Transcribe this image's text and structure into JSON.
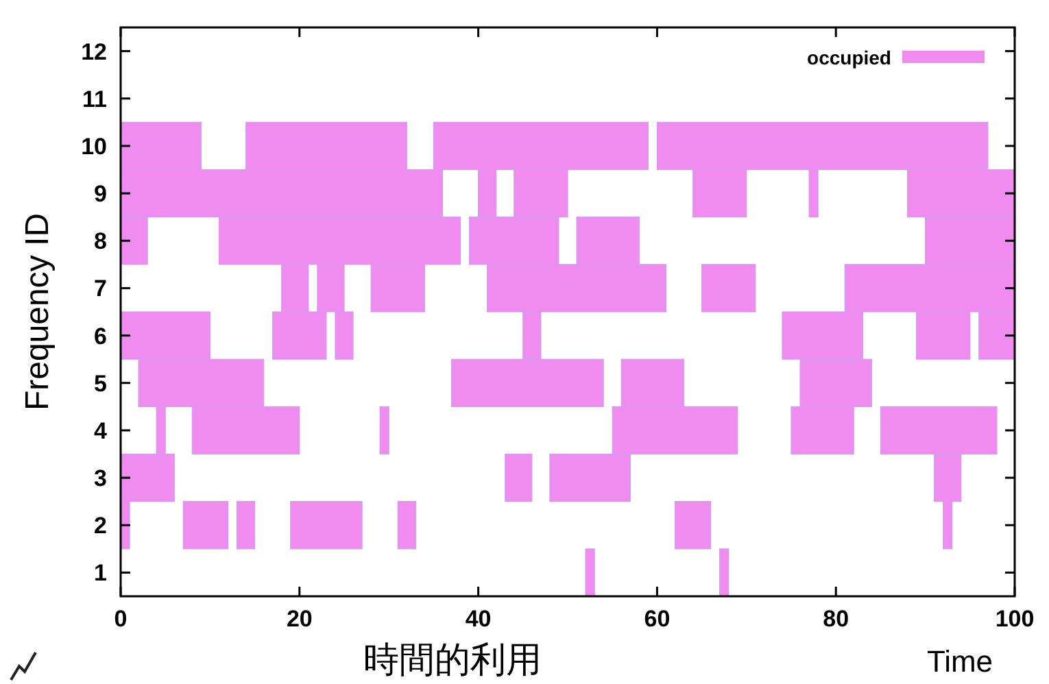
{
  "chart_data": {
    "type": "bar",
    "orientation": "horizontal",
    "xlabel": "Time",
    "ylabel": "Frequency ID",
    "annotations": [
      "時間的利用"
    ],
    "categories": [
      "12",
      "11",
      "10",
      "9",
      "8",
      "7",
      "6",
      "5",
      "4",
      "3",
      "2",
      "1"
    ],
    "xlim": [
      0,
      100
    ],
    "xticks": [
      0,
      20,
      40,
      60,
      80,
      100
    ],
    "legend": "top right",
    "series": [
      {
        "name": "occupied",
        "color": "#f08cf0",
        "base": [
          null,
          null,
          0,
          0,
          0,
          18,
          0,
          2,
          4,
          0,
          0,
          52
        ],
        "values": [
          null,
          null,
          9,
          36,
          3,
          3,
          10,
          14,
          1,
          6,
          1,
          1
        ]
      },
      {
        "color": "#f08cf0",
        "base": [
          null,
          null,
          14,
          40,
          11,
          22,
          17,
          37,
          8,
          43,
          7,
          67
        ],
        "values": [
          null,
          null,
          18,
          2,
          27,
          3,
          6,
          17,
          12,
          3,
          5,
          1
        ]
      },
      {
        "color": "#f08cf0",
        "base": [
          null,
          null,
          35,
          44,
          39,
          28,
          24,
          56,
          29,
          48,
          13,
          null
        ],
        "values": [
          null,
          null,
          24,
          6,
          10,
          6,
          2,
          7,
          1,
          9,
          2,
          null
        ]
      },
      {
        "color": "#f08cf0",
        "base": [
          null,
          null,
          60,
          64,
          51,
          41,
          45,
          76,
          55,
          91,
          19,
          null
        ],
        "values": [
          null,
          null,
          37,
          6,
          7,
          20,
          2,
          8,
          14,
          3,
          8,
          null
        ]
      },
      {
        "color": "#f08cf0",
        "base": [
          null,
          null,
          null,
          77,
          90,
          65,
          74,
          null,
          75,
          null,
          31,
          null
        ],
        "values": [
          null,
          null,
          null,
          1,
          10,
          6,
          9,
          null,
          7,
          null,
          2,
          null
        ]
      },
      {
        "color": "#f08cf0",
        "base": [
          null,
          null,
          null,
          88,
          null,
          81,
          89,
          null,
          85,
          null,
          62,
          null
        ],
        "values": [
          null,
          null,
          null,
          12,
          null,
          19,
          6,
          null,
          13,
          null,
          4,
          null
        ]
      },
      {
        "color": "#f08cf0",
        "base": [
          null,
          null,
          null,
          null,
          null,
          null,
          96,
          null,
          null,
          null,
          92,
          null
        ],
        "values": [
          null,
          null,
          null,
          null,
          null,
          null,
          4,
          null,
          null,
          null,
          1,
          null
        ]
      }
    ]
  }
}
